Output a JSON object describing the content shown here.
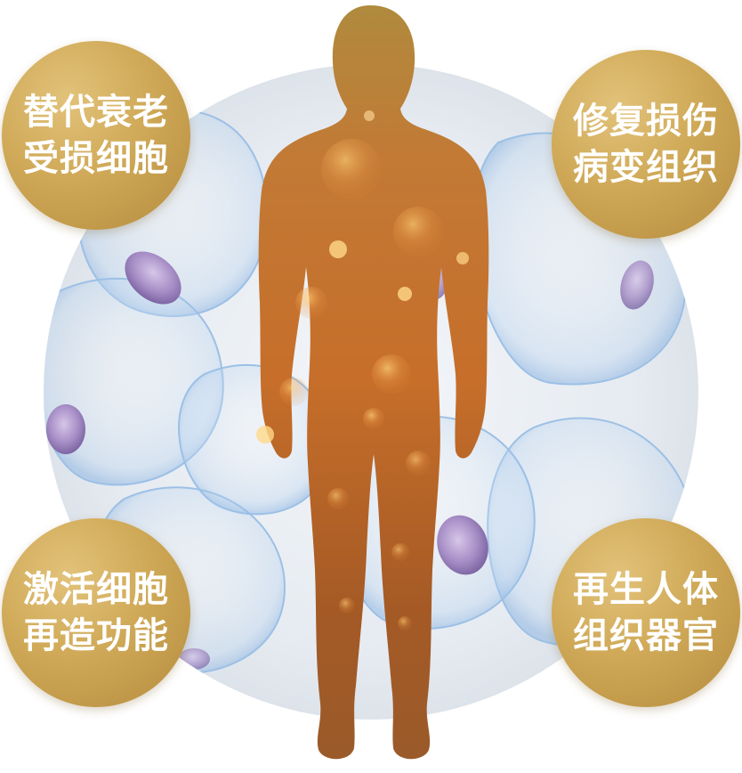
{
  "badges": [
    {
      "line1": "替代衰老",
      "line2": "受损细胞"
    },
    {
      "line1": "修复损伤",
      "line2": "病变组织"
    },
    {
      "line1": "激活细胞",
      "line2": "再造功能"
    },
    {
      "line1": "再生人体",
      "line2": "组织器官"
    }
  ],
  "colors": {
    "badge_gold": "#cfa957",
    "figure_orange": "#c9712a",
    "cell_blue": "#a9c8e8",
    "nucleus_purple": "#9b83b8",
    "background_circle": "#e9eef3"
  },
  "icons": [
    "human-silhouette",
    "cell-illustration"
  ]
}
